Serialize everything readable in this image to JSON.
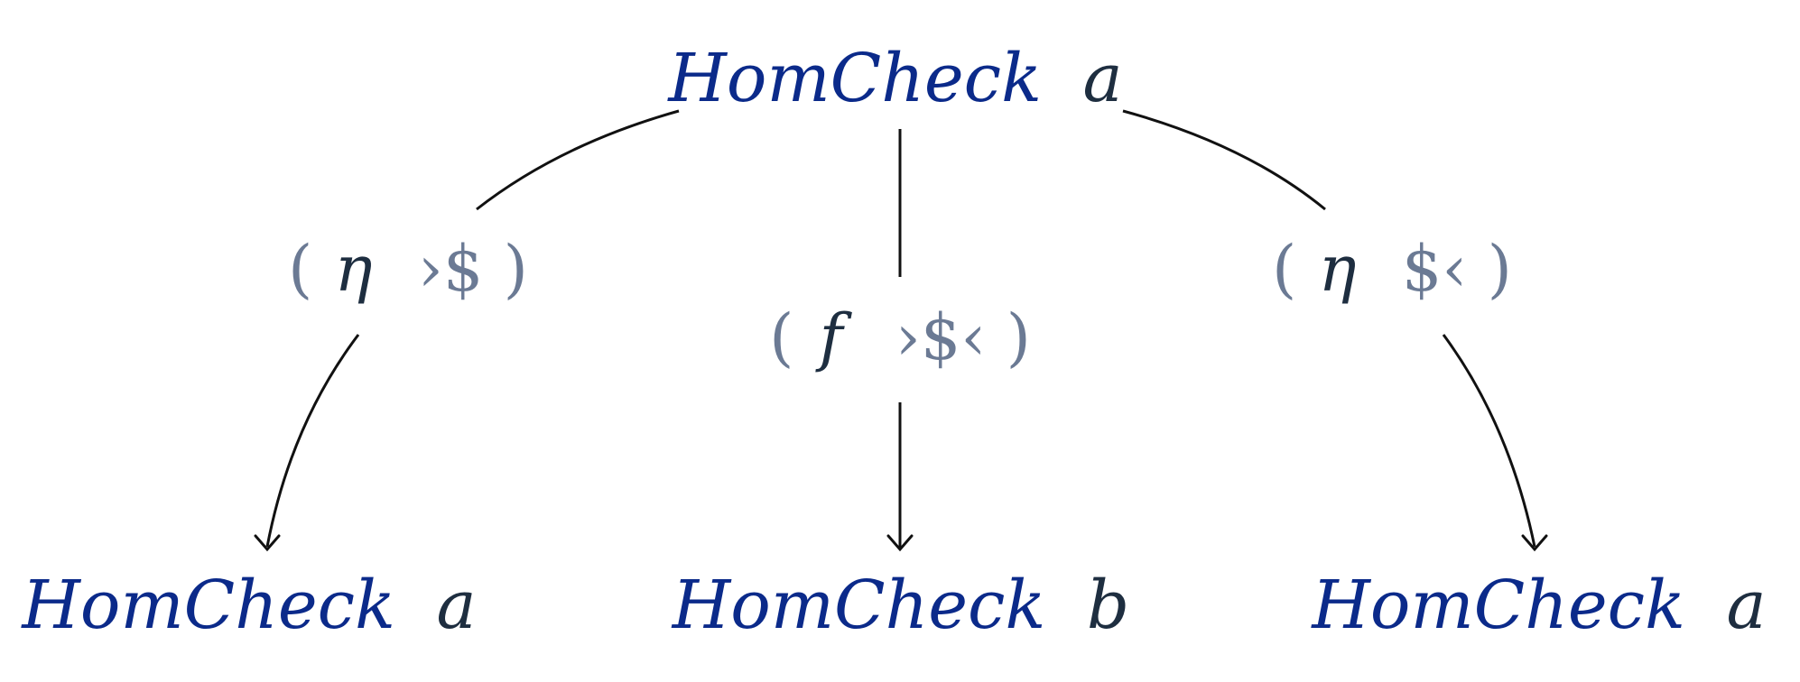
{
  "colors": {
    "type_constructor": "#0b2a8a",
    "type_variable": "#1e2e40",
    "operator": "#6b7a94",
    "edge": "#111111"
  },
  "nodes": {
    "top": {
      "name": "HomCheck",
      "var": "a"
    },
    "left": {
      "name": "HomCheck",
      "var": "a"
    },
    "middle": {
      "name": "HomCheck",
      "var": "b"
    },
    "right": {
      "name": "HomCheck",
      "var": "a"
    }
  },
  "edges": {
    "left": {
      "open": "(",
      "arg": "η",
      "op": "›$",
      "close": ")"
    },
    "middle": {
      "open": "(",
      "arg": "f",
      "op": "›$‹",
      "close": ")"
    },
    "right": {
      "open": "(",
      "arg": "η",
      "op": "$‹",
      "close": ")"
    }
  }
}
